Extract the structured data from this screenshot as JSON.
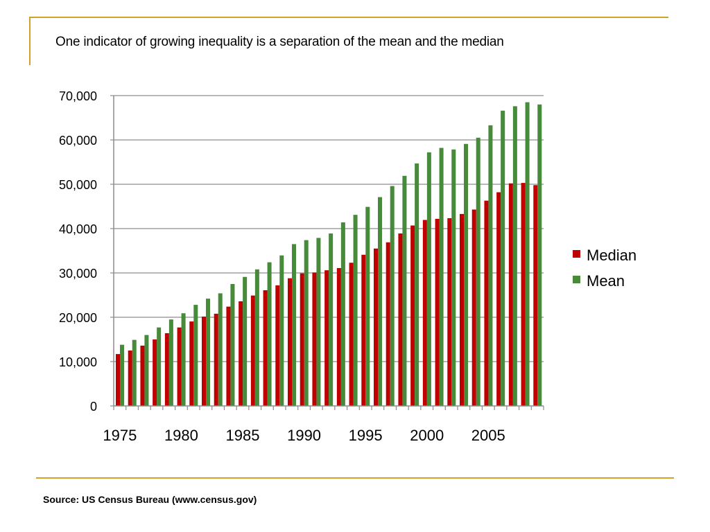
{
  "slide": {
    "title": "One indicator of growing inequality is a separation of the mean and the median",
    "source": "Source: US Census Bureau (www.census.gov)",
    "accent_color": "#D4A02A"
  },
  "chart_data": {
    "type": "bar",
    "title": "",
    "xlabel": "",
    "ylabel": "",
    "ylim": [
      0,
      70000
    ],
    "yticks": [
      0,
      10000,
      20000,
      30000,
      40000,
      50000,
      60000,
      70000
    ],
    "ytick_labels": [
      "0",
      "10,000",
      "20,000",
      "30,000",
      "40,000",
      "50,000",
      "60,000",
      "70,000"
    ],
    "xtick_labels": [
      "1975",
      "1980",
      "1985",
      "1990",
      "1995",
      "2000",
      "2005"
    ],
    "grid": "horizontal",
    "legend": "right",
    "categories": [
      "1975",
      "1976",
      "1977",
      "1978",
      "1979",
      "1980",
      "1981",
      "1982",
      "1983",
      "1984",
      "1985",
      "1986",
      "1987",
      "1988",
      "1989",
      "1990",
      "1991",
      "1992",
      "1993",
      "1994",
      "1995",
      "1996",
      "1997",
      "1998",
      "1999",
      "2000",
      "2001",
      "2002",
      "2003",
      "2004",
      "2005",
      "2006",
      "2007",
      "2008",
      "2009"
    ],
    "series": [
      {
        "name": "Median",
        "color": "#C00000",
        "values": [
          11700,
          12500,
          13600,
          15000,
          16400,
          17700,
          19050,
          20150,
          20800,
          22400,
          23600,
          24900,
          26100,
          27200,
          28800,
          29900,
          30100,
          30600,
          31100,
          32300,
          34100,
          35500,
          36900,
          38900,
          40700,
          41950,
          42200,
          42350,
          43300,
          44300,
          46300,
          48200,
          50200,
          50300,
          49800
        ]
      },
      {
        "name": "Mean",
        "color": "#468A3A",
        "values": [
          13800,
          14900,
          16000,
          17700,
          19500,
          20900,
          22800,
          24200,
          25400,
          27500,
          29100,
          30800,
          32400,
          33950,
          36500,
          37400,
          37900,
          38900,
          41400,
          43100,
          44900,
          47100,
          49600,
          51900,
          54700,
          57200,
          58200,
          57850,
          59100,
          60500,
          63300,
          66600,
          67600,
          68500,
          68000
        ]
      }
    ]
  }
}
